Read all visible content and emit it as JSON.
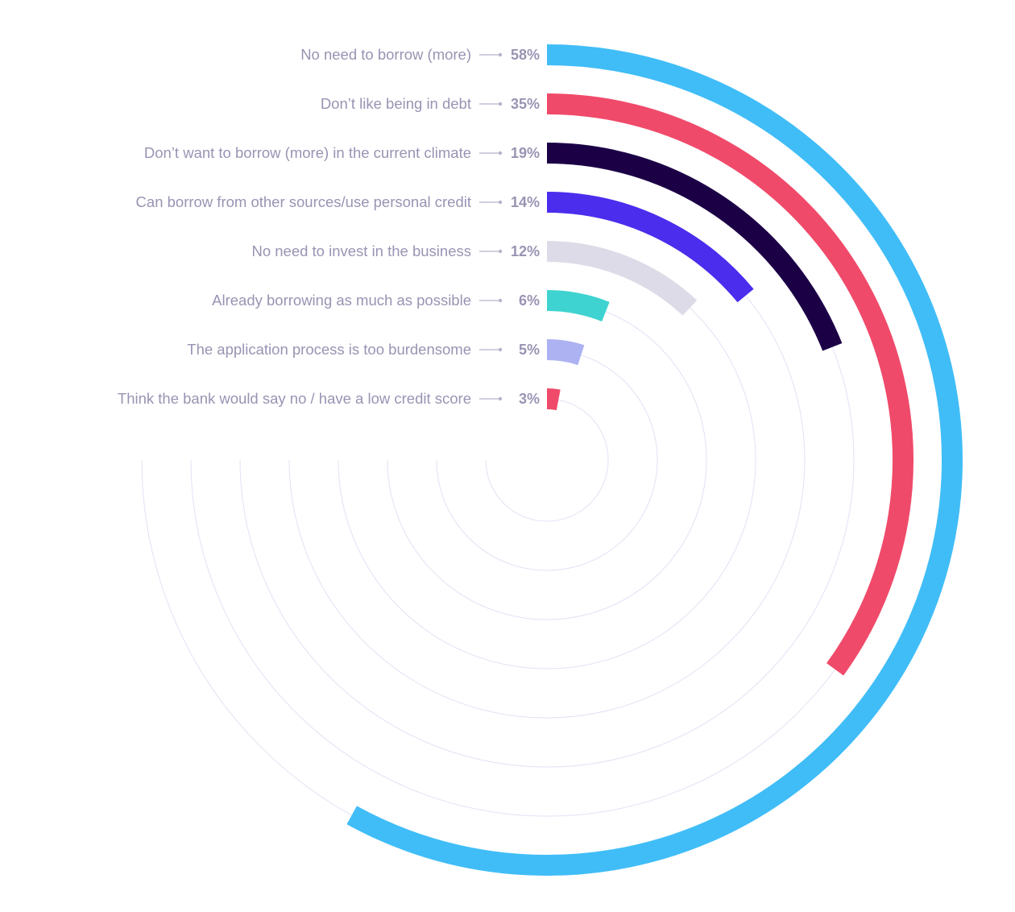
{
  "chart_data": {
    "type": "radial-bar",
    "max_value": 100,
    "categories": [
      "No need to borrow (more)",
      "Don’t like being in debt",
      "Don’t want to borrow (more) in the current climate",
      "Can borrow from other sources/use personal credit",
      "No need to invest in the business",
      "Already borrowing as much as possible",
      "The application process is too burdensome",
      "Think the bank would say no / have a low credit score"
    ],
    "values": [
      58,
      35,
      19,
      14,
      12,
      6,
      5,
      3
    ],
    "value_labels": [
      "58%",
      "35%",
      "19%",
      "14%",
      "12%",
      "6%",
      "5%",
      "3%"
    ],
    "colors": [
      "#40bdf7",
      "#f04a6a",
      "#1b0046",
      "#4a2ded",
      "#dedbe8",
      "#3ed3d0",
      "#acb2f2",
      "#f04a6a"
    ]
  }
}
